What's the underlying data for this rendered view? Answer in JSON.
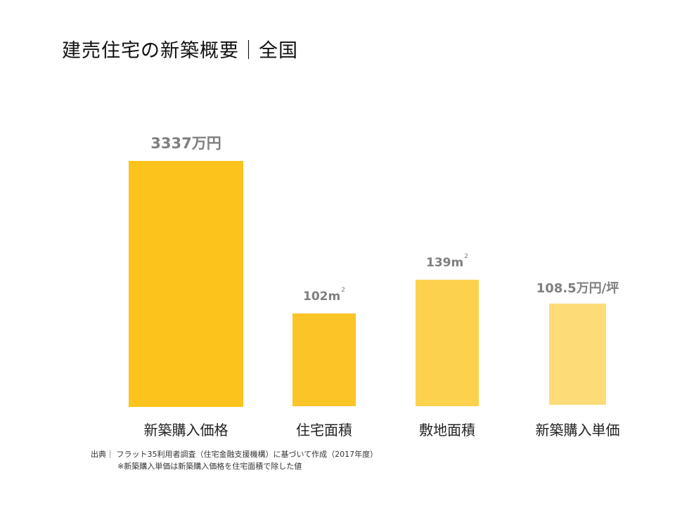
{
  "title": "建売住宅の新築概要｜全国",
  "chart_data": {
    "type": "bar",
    "title": "建売住宅の新築概要｜全国",
    "categories": [
      "新築購入価格",
      "住宅面積",
      "敷地面積",
      "新築購入単価"
    ],
    "values": [
      3337,
      102,
      139,
      108.5
    ],
    "units": [
      "万円",
      "m²",
      "m²",
      "万円/坪"
    ],
    "labels": [
      {
        "number": "3337",
        "unit": "万円",
        "sup": ""
      },
      {
        "number": "102",
        "unit": "m",
        "sup": "2"
      },
      {
        "number": "139",
        "unit": "m",
        "sup": "2"
      },
      {
        "number": "108.5",
        "unit": "万円/坪",
        "sup": ""
      }
    ],
    "colors": [
      "#fbc31b",
      "#fbc527",
      "#fcd14e",
      "#fddc78"
    ],
    "note": "each bar uses its own unit scale"
  },
  "source": {
    "line1": "出典｜ フラット35利用者調査（住宅金融支援機構）に基づいて作成（2017年度）",
    "line2": "※新築購入単価は新築購入価格を住宅面積で除した値"
  }
}
